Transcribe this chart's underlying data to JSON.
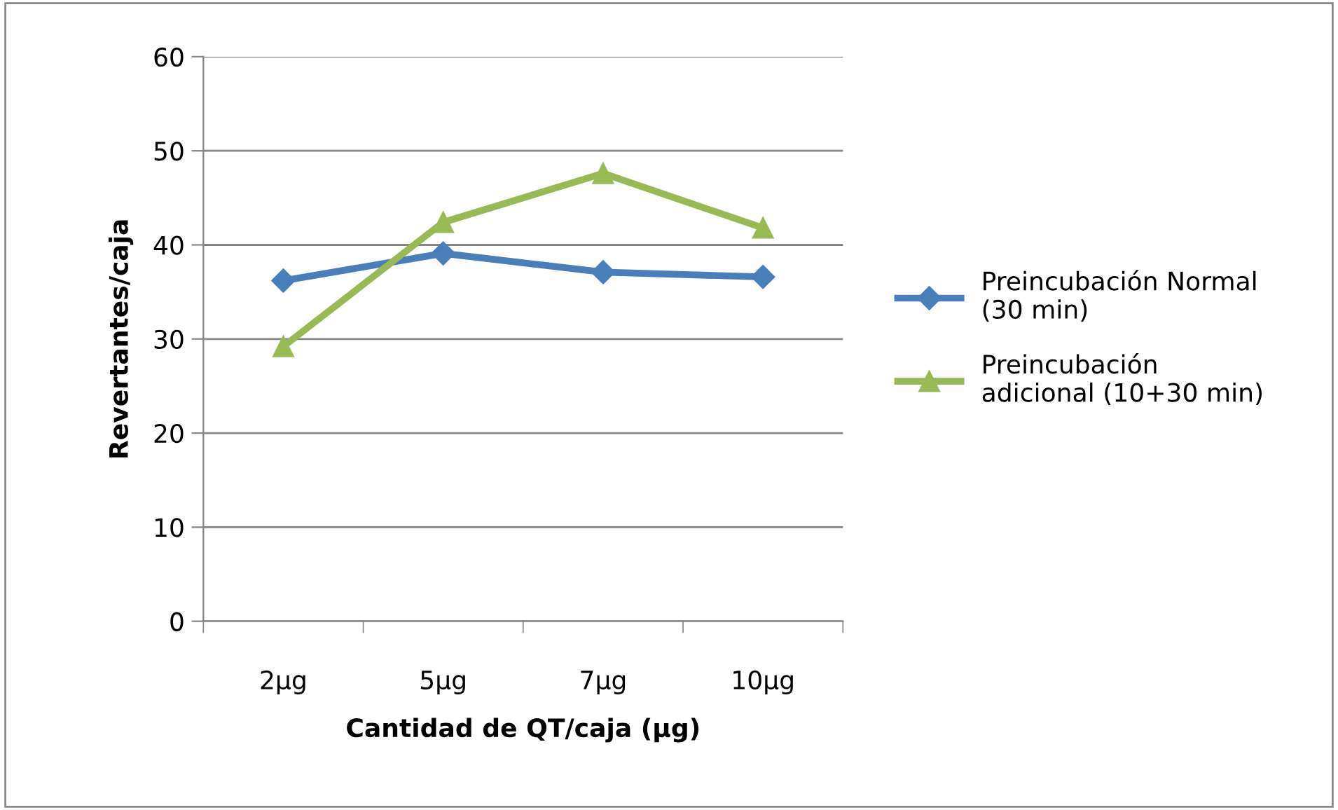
{
  "chart_data": {
    "type": "line",
    "xlabel": "Cantidad de QT/caja (µg)",
    "ylabel": "Revertantes/caja",
    "categories": [
      "2µg",
      "5µg",
      "7µg",
      "10µg"
    ],
    "series": [
      {
        "name": "Preincubación Normal\n(30 min)",
        "color": "#4a7ebb",
        "marker": "diamond",
        "values": [
          36.2,
          39.1,
          37.1,
          36.6
        ]
      },
      {
        "name": "Preincubación\nadicional (10+30 min)",
        "color": "#98b954",
        "marker": "triangle",
        "values": [
          29.2,
          42.4,
          47.6,
          41.8
        ]
      }
    ],
    "ylim": [
      0,
      60
    ],
    "yticks": [
      0,
      10,
      20,
      30,
      40,
      50,
      60
    ],
    "grid": "y",
    "legend": "right",
    "line_style": "solid"
  }
}
